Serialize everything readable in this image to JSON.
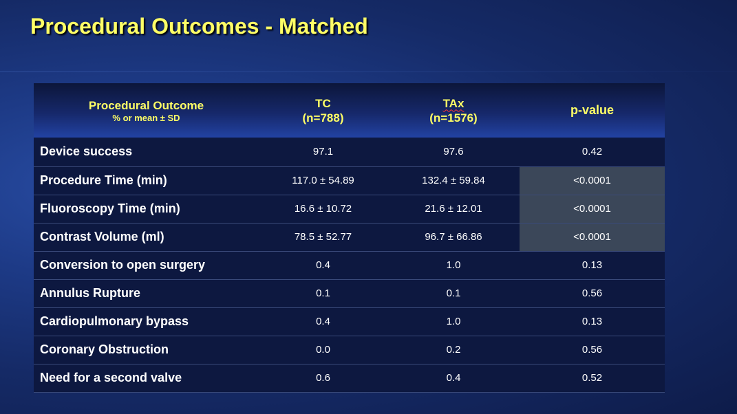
{
  "slide": {
    "title": "Procedural Outcomes - Matched"
  },
  "table": {
    "headers": {
      "outcome": {
        "label": "Procedural Outcome",
        "sub": "% or mean ± SD"
      },
      "tc": {
        "label": "TC",
        "sub": "(n=788)"
      },
      "tax": {
        "label": "TAx",
        "sub": "(n=1576)"
      },
      "pvalue": {
        "label": "p-value"
      }
    },
    "rows": [
      {
        "label": "Device success",
        "tc": "97.1",
        "tax": "97.6",
        "p": "0.42"
      },
      {
        "label": "Procedure Time (min)",
        "tc": "117.0 ± 54.89",
        "tax": "132.4 ± 59.84",
        "p": "<0.0001"
      },
      {
        "label": "Fluoroscopy Time (min)",
        "tc": "16.6 ± 10.72",
        "tax": "21.6 ± 12.01",
        "p": "<0.0001"
      },
      {
        "label": "Contrast Volume (ml)",
        "tc": "78.5 ± 52.77",
        "tax": "96.7 ± 66.86",
        "p": "<0.0001"
      },
      {
        "label": "Conversion to open surgery",
        "tc": "0.4",
        "tax": "1.0",
        "p": "0.13"
      },
      {
        "label": "Annulus Rupture",
        "tc": "0.1",
        "tax": "0.1",
        "p": "0.56"
      },
      {
        "label": "Cardiopulmonary bypass",
        "tc": "0.4",
        "tax": "1.0",
        "p": "0.13"
      },
      {
        "label": "Coronary Obstruction",
        "tc": "0.0",
        "tax": "0.2",
        "p": "0.56"
      },
      {
        "label": "Need for a second valve",
        "tc": "0.6",
        "tax": "0.4",
        "p": "0.52"
      }
    ]
  }
}
